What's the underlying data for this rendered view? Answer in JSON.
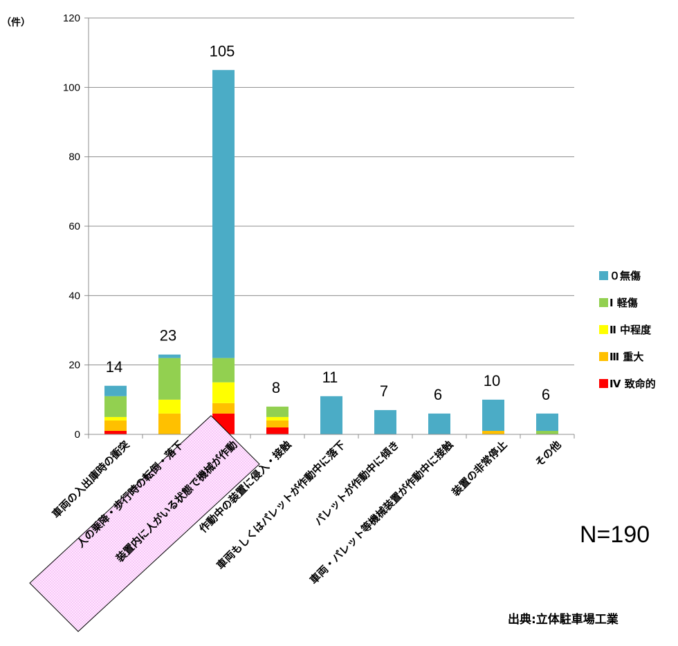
{
  "chart_data": {
    "type": "bar",
    "stacked": true,
    "unit_label": "（件）",
    "ylim": [
      0,
      120
    ],
    "yticks": [
      0,
      20,
      40,
      60,
      80,
      100,
      120
    ],
    "grid": true,
    "categories": [
      "車両の入出庫時の衝突",
      "人の乗降・歩行時の転倒・落下",
      "装置内に人がいる状態で機械が作動",
      "作動中の装置に侵入・接触",
      "車両もしくはパレットが作動中に落下",
      "パレットが作動中に傾き",
      "車両・パレット等機械装置が作動中に接触",
      "装置の非常停止",
      "その他"
    ],
    "highlighted_category": "装置内に人がいる状態で機械が作動",
    "series": [
      {
        "name": "Ⅳ 致命的",
        "color": "#ff0000",
        "values": [
          1,
          0,
          6,
          2,
          0,
          0,
          0,
          0,
          0
        ]
      },
      {
        "name": "Ⅲ 重大",
        "color": "#ffc000",
        "values": [
          3,
          6,
          3,
          2,
          0,
          0,
          0,
          1,
          0
        ]
      },
      {
        "name": "Ⅱ 中程度",
        "color": "#ffff00",
        "values": [
          1,
          4,
          6,
          1,
          0,
          0,
          0,
          0,
          0
        ]
      },
      {
        "name": "Ⅰ 軽傷",
        "color": "#92d050",
        "values": [
          6,
          12,
          7,
          3,
          0,
          0,
          0,
          0,
          1
        ]
      },
      {
        "name": "０無傷",
        "color": "#4bacc6",
        "values": [
          3,
          1,
          83,
          0,
          11,
          7,
          6,
          9,
          5
        ]
      }
    ],
    "totals": [
      14,
      23,
      105,
      8,
      11,
      7,
      6,
      10,
      6
    ],
    "legend_order": [
      "０無傷",
      "Ⅰ 軽傷",
      "Ⅱ 中程度",
      "Ⅲ 重大",
      "Ⅳ 致命的"
    ],
    "legend_position": "right",
    "n_label": "N=190",
    "source": "出典:立体駐車場工業"
  }
}
